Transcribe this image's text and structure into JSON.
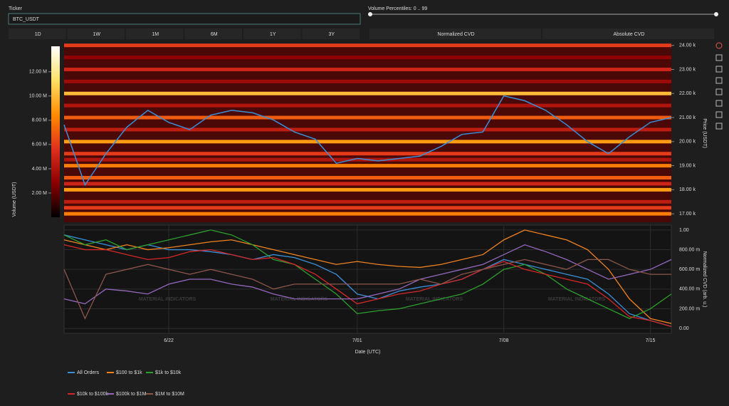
{
  "ticker": {
    "label": "Ticker",
    "value": "BTC_USDT"
  },
  "volume_percentiles": {
    "label": "Volume Percentiles: 0 .. 99"
  },
  "range_buttons": [
    "1D",
    "1W",
    "1M",
    "6M",
    "1Y",
    "3Y"
  ],
  "cvd_buttons": [
    "Normalized CVD",
    "Absolute CVD"
  ],
  "watermark": "MATERIAL INDICATORS",
  "chart_data": [
    {
      "type": "heatmap",
      "x": [
        "6/17",
        "6/18",
        "6/19",
        "6/20",
        "6/21",
        "6/22",
        "6/23",
        "6/24",
        "6/25",
        "6/26",
        "6/27",
        "6/28",
        "6/29",
        "6/30",
        "7/01",
        "7/02",
        "7/03",
        "7/04",
        "7/05",
        "7/06",
        "7/07",
        "7/08",
        "7/09",
        "7/10",
        "7/11",
        "7/12",
        "7/13",
        "7/14",
        "7/15",
        "7/16"
      ],
      "xlim": [
        "6/17",
        "7/16"
      ],
      "price": {
        "color": "#3a8fd8",
        "values": [
          20700,
          18200,
          19500,
          20600,
          21300,
          20800,
          20500,
          21100,
          21300,
          21200,
          20900,
          20400,
          20100,
          19100,
          19300,
          19200,
          19300,
          19400,
          19800,
          20300,
          20400,
          21900,
          21700,
          21300,
          20700,
          20000,
          19500,
          20200,
          20800,
          21000
        ]
      },
      "levels": {
        "prices": [
          17000,
          17250,
          17500,
          18000,
          18250,
          18500,
          19000,
          19250,
          19500,
          20000,
          20500,
          21000,
          21500,
          22000,
          22500,
          23000,
          23500,
          24000
        ],
        "volumes": [
          8000000,
          6000000,
          4500000,
          9000000,
          5000000,
          7000000,
          8000000,
          4000000,
          6000000,
          9000000,
          4500000,
          7000000,
          4000000,
          10000000,
          3500000,
          5000000,
          3000000,
          6000000
        ]
      },
      "ylim": [
        16650,
        24050
      ],
      "yticks": [
        {
          "value": 17000,
          "label": "17.00 k"
        },
        {
          "value": 18000,
          "label": "18.00 k"
        },
        {
          "value": 19000,
          "label": "19.00 k"
        },
        {
          "value": 20000,
          "label": "20.00 k"
        },
        {
          "value": 21000,
          "label": "21.00 k"
        },
        {
          "value": 22000,
          "label": "22.00 k"
        },
        {
          "value": 23000,
          "label": "23.00 k"
        },
        {
          "value": 24000,
          "label": "24.00 k"
        }
      ],
      "ylabel": "Price (USDT)",
      "colorbar": {
        "label": "Volume (USDT)",
        "lim": [
          0,
          14100000
        ],
        "colors": [
          "#000000",
          "#8b0000",
          "#e0301e",
          "#ff8c00",
          "#ffe066",
          "#ffffff"
        ],
        "ticks": [
          {
            "value": 2000000,
            "label": "2.00 M"
          },
          {
            "value": 4000000,
            "label": "4.00 M"
          },
          {
            "value": 6000000,
            "label": "6.00 M"
          },
          {
            "value": 8000000,
            "label": "8.00 M"
          },
          {
            "value": 10000000,
            "label": "10.00 M"
          },
          {
            "value": 12000000,
            "label": "12.00 M"
          }
        ]
      }
    },
    {
      "type": "line",
      "x": [
        "6/17",
        "6/18",
        "6/19",
        "6/20",
        "6/21",
        "6/22",
        "6/23",
        "6/24",
        "6/25",
        "6/26",
        "6/27",
        "6/28",
        "6/29",
        "6/30",
        "7/01",
        "7/02",
        "7/03",
        "7/04",
        "7/05",
        "7/06",
        "7/07",
        "7/08",
        "7/09",
        "7/10",
        "7/11",
        "7/12",
        "7/13",
        "7/14",
        "7/15",
        "7/16"
      ],
      "xlim": [
        "6/17",
        "7/16"
      ],
      "xticks": [
        "6/22",
        "7/01",
        "7/08",
        "7/15"
      ],
      "xlabel": "Date (UTC)",
      "ylim": [
        -0.05,
        1.05
      ],
      "yticks": [
        {
          "value": 0,
          "label": "0.00"
        },
        {
          "value": 0.2,
          "label": "200.00 m"
        },
        {
          "value": 0.4,
          "label": "400.00 m"
        },
        {
          "value": 0.6,
          "label": "600.00 m"
        },
        {
          "value": 0.8,
          "label": "800.00 m"
        },
        {
          "value": 1,
          "label": "1.00"
        }
      ],
      "ylabel": "Normalized CVD (arb. u.)",
      "series": [
        {
          "name": "All Orders",
          "color": "#3a8fd8",
          "values": [
            0.95,
            0.9,
            0.85,
            0.8,
            0.85,
            0.8,
            0.8,
            0.78,
            0.75,
            0.7,
            0.75,
            0.72,
            0.65,
            0.55,
            0.35,
            0.3,
            0.38,
            0.42,
            0.45,
            0.5,
            0.6,
            0.7,
            0.65,
            0.6,
            0.55,
            0.5,
            0.35,
            0.15,
            0.08,
            0.02
          ]
        },
        {
          "name": "$100 to $1k",
          "color": "#f0821e",
          "values": [
            0.9,
            0.85,
            0.8,
            0.85,
            0.8,
            0.82,
            0.85,
            0.88,
            0.9,
            0.85,
            0.8,
            0.75,
            0.7,
            0.65,
            0.68,
            0.65,
            0.63,
            0.62,
            0.65,
            0.7,
            0.75,
            0.9,
            1.0,
            0.95,
            0.9,
            0.8,
            0.6,
            0.3,
            0.1,
            0.05
          ]
        },
        {
          "name": "$1k to $10k",
          "color": "#2ca02c",
          "values": [
            0.95,
            0.85,
            0.9,
            0.8,
            0.85,
            0.9,
            0.95,
            1.0,
            0.95,
            0.85,
            0.7,
            0.65,
            0.5,
            0.35,
            0.15,
            0.18,
            0.2,
            0.25,
            0.3,
            0.35,
            0.45,
            0.6,
            0.65,
            0.55,
            0.4,
            0.3,
            0.2,
            0.1,
            0.2,
            0.35
          ]
        },
        {
          "name": "$10k to $100k",
          "color": "#d62728",
          "values": [
            0.85,
            0.8,
            0.8,
            0.75,
            0.7,
            0.72,
            0.78,
            0.8,
            0.75,
            0.7,
            0.72,
            0.65,
            0.55,
            0.4,
            0.25,
            0.3,
            0.35,
            0.38,
            0.45,
            0.5,
            0.6,
            0.68,
            0.6,
            0.55,
            0.5,
            0.45,
            0.3,
            0.12,
            0.08,
            0.02
          ]
        },
        {
          "name": "$100k to $1M",
          "color": "#9467bd",
          "values": [
            0.3,
            0.25,
            0.4,
            0.38,
            0.35,
            0.45,
            0.5,
            0.5,
            0.45,
            0.42,
            0.35,
            0.3,
            0.3,
            0.3,
            0.3,
            0.35,
            0.4,
            0.5,
            0.55,
            0.6,
            0.65,
            0.75,
            0.85,
            0.78,
            0.7,
            0.6,
            0.5,
            0.55,
            0.6,
            0.7
          ]
        },
        {
          "name": "$1M to $10M",
          "color": "#8c564b",
          "values": [
            0.6,
            0.1,
            0.55,
            0.6,
            0.65,
            0.6,
            0.55,
            0.6,
            0.55,
            0.5,
            0.4,
            0.45,
            0.45,
            0.45,
            0.45,
            0.45,
            0.45,
            0.5,
            0.45,
            0.55,
            0.6,
            0.65,
            0.7,
            0.65,
            0.6,
            0.7,
            0.7,
            0.6,
            0.55,
            0.55
          ]
        }
      ]
    }
  ]
}
